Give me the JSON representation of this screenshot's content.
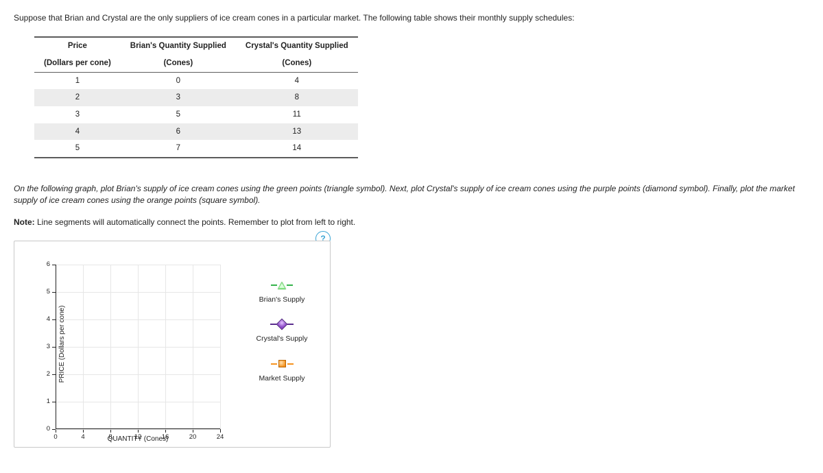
{
  "intro_text": "Suppose that Brian and Crystal are the only suppliers of ice cream cones in a particular market. The following table shows their monthly supply schedules:",
  "table": {
    "headers_line1": [
      "Price",
      "Brian's Quantity Supplied",
      "Crystal's Quantity Supplied"
    ],
    "headers_line2": [
      "(Dollars per cone)",
      "(Cones)",
      "(Cones)"
    ],
    "rows": [
      [
        "1",
        "0",
        "4"
      ],
      [
        "2",
        "3",
        "8"
      ],
      [
        "3",
        "5",
        "11"
      ],
      [
        "4",
        "6",
        "13"
      ],
      [
        "5",
        "7",
        "14"
      ]
    ]
  },
  "para2_a": "On the following graph, plot Brian's supply of ice cream cones using the green points (triangle symbol). Next, plot Crystal's supply of ice cream cones using the purple points (diamond symbol). Finally, plot the market supply of ice cream cones using the orange points (square symbol).",
  "note_bold": "Note:",
  "note_rest": " Line segments will automatically connect the points. Remember to plot from left to right.",
  "help": "?",
  "chart": {
    "ylabel": "PRICE (Dollars per cone)",
    "xlabel": "QUANTITY (Cones)",
    "xlim": [
      0,
      24
    ],
    "ylim": [
      0,
      6
    ],
    "xticks": [
      0,
      4,
      8,
      12,
      16,
      20,
      24
    ],
    "yticks": [
      0,
      1,
      2,
      3,
      4,
      5,
      6
    ],
    "grid_color": "#e6e6e6",
    "axis_color": "#222222",
    "background": "#ffffff"
  },
  "legend": {
    "brian": {
      "label": "Brian's Supply",
      "color": "#33b24a",
      "marker": "triangle"
    },
    "crystal": {
      "label": "Crystal's Supply",
      "color": "#8a45c7",
      "marker": "diamond"
    },
    "market": {
      "label": "Market Supply",
      "color": "#f5921e",
      "marker": "square"
    }
  }
}
